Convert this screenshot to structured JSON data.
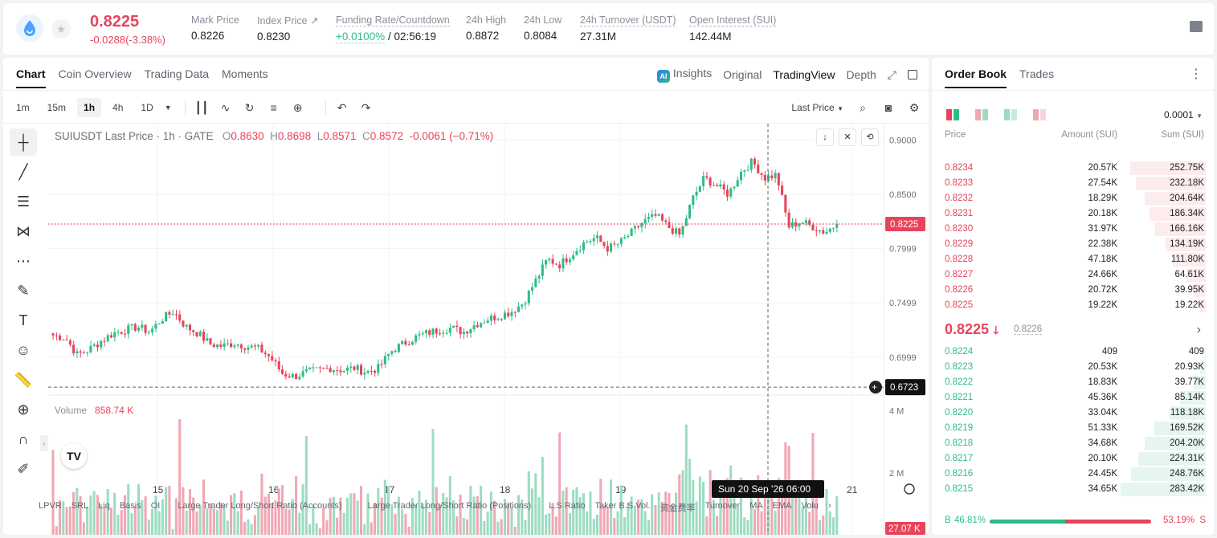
{
  "ticker": {
    "last_price": "0.8225",
    "change": "-0.0288(-3.38%)",
    "stats": [
      {
        "label": "Mark Price",
        "value": "0.8226"
      },
      {
        "label": "Index Price ↗",
        "value": "0.8230"
      },
      {
        "label": "Funding Rate/Countdown",
        "value_rate": "+0.0100%",
        "value_countdown": "/ 02:56:19"
      },
      {
        "label": "24h High",
        "value": "0.8872"
      },
      {
        "label": "24h Low",
        "value": "0.8084"
      },
      {
        "label": "24h Turnover (USDT)",
        "value": "27.31M"
      },
      {
        "label": "Open Interest (SUI)",
        "value": "142.44M"
      }
    ]
  },
  "chart_tabs": [
    "Chart",
    "Coin Overview",
    "Trading Data",
    "Moments"
  ],
  "view_tabs": {
    "insights": "Insights",
    "original": "Original",
    "tradingview": "TradingView",
    "depth": "Depth"
  },
  "timeframes": [
    "1m",
    "15m",
    "1h",
    "4h",
    "1D"
  ],
  "active_timeframe": "1h",
  "price_source": "Last Price",
  "legend": {
    "symbol": "SUIUSDT Last Price · 1h · GATE",
    "o_label": "O",
    "o": "0.8630",
    "h_label": "H",
    "h": "0.8698",
    "l_label": "L",
    "l": "0.8571",
    "c_label": "C",
    "c": "0.8572",
    "chg": "-0.0061 (−0.71%)"
  },
  "volume_legend": {
    "label": "Volume",
    "value": "858.74 K"
  },
  "price_axis": [
    "0.9000",
    "0.8500",
    "0.7999",
    "0.7499",
    "0.6999"
  ],
  "volume_axis": [
    "4 M",
    "2 M"
  ],
  "time_axis": [
    "15",
    "16",
    "17",
    "18",
    "19",
    "21"
  ],
  "crosshair": {
    "price": "0.6723",
    "time": "Sun 20 Sep '26   06:00"
  },
  "last_price_tag": "0.8225",
  "last_volume_tag": "27.07 K",
  "indicators": [
    "LPVR",
    "SRL",
    "Liq",
    "Basis",
    "OI",
    "Large Trader Long/Short Ratio (Accounts)",
    "Large Trader Long/Short Ratio (Positions)",
    "L.S Ratio",
    "Taker B.S Vol.",
    "资金费率",
    "Turnover",
    "MA",
    "EMA",
    "Volu"
  ],
  "chart_data": {
    "type": "candlestick",
    "title": "SUIUSDT Last Price · 1h · GATE",
    "x_ticks": [
      "15",
      "16",
      "17",
      "18",
      "19",
      "21"
    ],
    "ylim": [
      0.665,
      0.915
    ],
    "y_ticks": [
      0.9,
      0.85,
      0.7999,
      0.7499,
      0.6999
    ],
    "close_path": [
      0.72,
      0.718,
      0.702,
      0.707,
      0.715,
      0.722,
      0.725,
      0.728,
      0.723,
      0.735,
      0.742,
      0.728,
      0.722,
      0.712,
      0.71,
      0.713,
      0.71,
      0.708,
      0.7,
      0.685,
      0.682,
      0.686,
      0.688,
      0.69,
      0.688,
      0.69,
      0.686,
      0.69,
      0.705,
      0.712,
      0.718,
      0.722,
      0.725,
      0.727,
      0.723,
      0.73,
      0.735,
      0.738,
      0.742,
      0.75,
      0.77,
      0.79,
      0.785,
      0.795,
      0.805,
      0.81,
      0.8,
      0.805,
      0.815,
      0.825,
      0.83,
      0.82,
      0.812,
      0.845,
      0.865,
      0.858,
      0.85,
      0.87,
      0.88,
      0.865,
      0.868,
      0.82,
      0.825,
      0.82,
      0.815,
      0.8225
    ],
    "volume_ylim": [
      0,
      4.3
    ],
    "volume_unit": "M",
    "last_price": 0.8225,
    "crosshair_price": 0.6723
  },
  "order_book": {
    "tabs": [
      "Order Book",
      "Trades"
    ],
    "precision": "0.0001",
    "columns": {
      "price": "Price",
      "amount": "Amount (SUI)",
      "sum": "Sum (SUI)"
    },
    "asks": [
      {
        "price": "0.8234",
        "amount": "20.57K",
        "sum": "252.75K",
        "depth": 0.89
      },
      {
        "price": "0.8233",
        "amount": "27.54K",
        "sum": "232.18K",
        "depth": 0.82
      },
      {
        "price": "0.8232",
        "amount": "18.29K",
        "sum": "204.64K",
        "depth": 0.72
      },
      {
        "price": "0.8231",
        "amount": "20.18K",
        "sum": "186.34K",
        "depth": 0.66
      },
      {
        "price": "0.8230",
        "amount": "31.97K",
        "sum": "166.16K",
        "depth": 0.59
      },
      {
        "price": "0.8229",
        "amount": "22.38K",
        "sum": "134.19K",
        "depth": 0.47
      },
      {
        "price": "0.8228",
        "amount": "47.18K",
        "sum": "111.80K",
        "depth": 0.39
      },
      {
        "price": "0.8227",
        "amount": "24.66K",
        "sum": "64.61K",
        "depth": 0.23
      },
      {
        "price": "0.8226",
        "amount": "20.72K",
        "sum": "39.95K",
        "depth": 0.14
      },
      {
        "price": "0.8225",
        "amount": "19.22K",
        "sum": "19.22K",
        "depth": 0.07
      }
    ],
    "mid_price": "0.8225",
    "mid_mark": "0.8226",
    "bids": [
      {
        "price": "0.8224",
        "amount": "409",
        "sum": "409",
        "depth": 0.01
      },
      {
        "price": "0.8223",
        "amount": "20.53K",
        "sum": "20.93K",
        "depth": 0.07
      },
      {
        "price": "0.8222",
        "amount": "18.83K",
        "sum": "39.77K",
        "depth": 0.14
      },
      {
        "price": "0.8221",
        "amount": "45.36K",
        "sum": "85.14K",
        "depth": 0.3
      },
      {
        "price": "0.8220",
        "amount": "33.04K",
        "sum": "118.18K",
        "depth": 0.42
      },
      {
        "price": "0.8219",
        "amount": "51.33K",
        "sum": "169.52K",
        "depth": 0.6
      },
      {
        "price": "0.8218",
        "amount": "34.68K",
        "sum": "204.20K",
        "depth": 0.72
      },
      {
        "price": "0.8217",
        "amount": "20.10K",
        "sum": "224.31K",
        "depth": 0.79
      },
      {
        "price": "0.8216",
        "amount": "24.45K",
        "sum": "248.76K",
        "depth": 0.88
      },
      {
        "price": "0.8215",
        "amount": "34.65K",
        "sum": "283.42K",
        "depth": 1.0
      }
    ],
    "buy_ratio": "46.81%",
    "sell_ratio": "53.19%",
    "buy_fraction": 0.4681,
    "buy_label": "B",
    "sell_label": "S"
  },
  "colors": {
    "up": "#2ebd85",
    "down": "#e8435a",
    "up_vol": "#9ddcc2",
    "down_vol": "#f1a7b2"
  }
}
